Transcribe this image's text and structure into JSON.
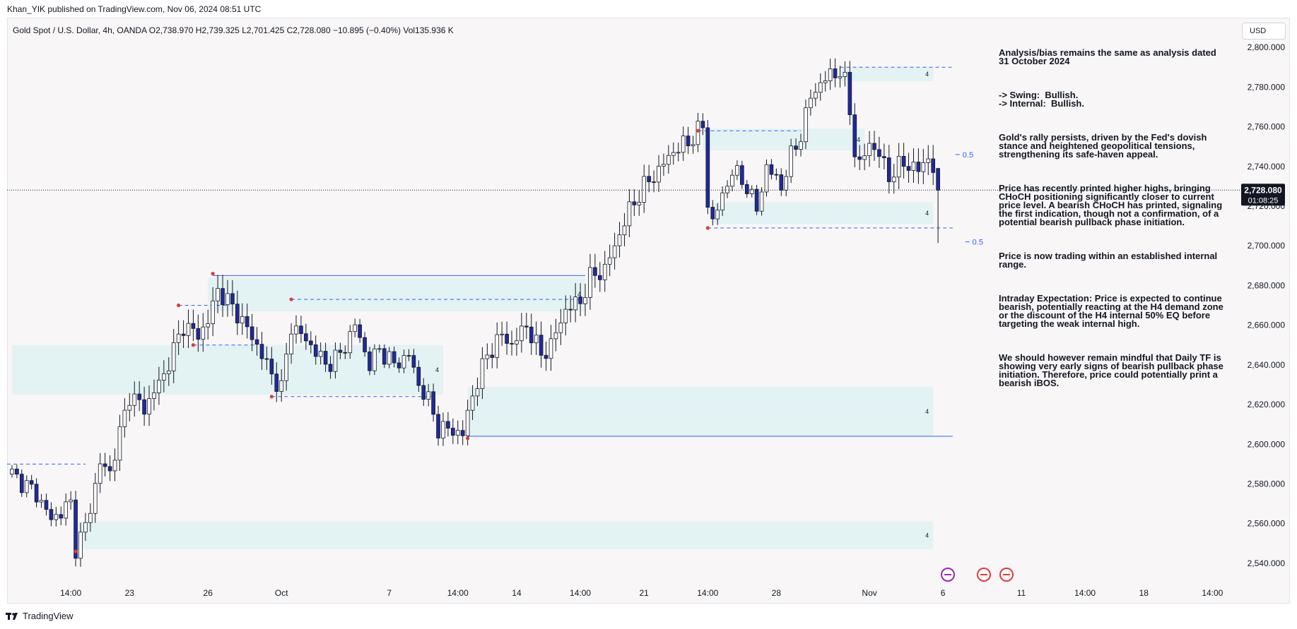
{
  "header": {
    "publisher": "Khan_YIK published on TradingView.com, Nov 06, 2024 08:51 UTC"
  },
  "symbol": {
    "line": "Gold Spot / U.S. Dollar, 4h, OANDA  O2,738.970  H2,739.325  L2,701.425  C2,728.080  −10.895 (−0.40%)  Vol135.936 K"
  },
  "currency": "USD",
  "analysis": [
    "Analysis/bias remains the same as analysis dated 31 October 2024",
    "-> Swing:  Bullish.\n-> Internal:  Bullish.",
    "Gold's rally persists, driven by the Fed's dovish stance and heightened geopolitical tensions, strengthening its safe-haven appeal.",
    "Price has recently printed higher highs, bringing CHoCH positioning significantly closer to current price level. A bearish CHoCH has printed, signaling the first indication, though not a confirmation, of a potential bearish pullback phase initiation.",
    "Price is now trading within an established internal range.",
    "Intraday Expectation: Price is expected to continue bearish, potentially reacting at the H4 demand zone or the discount of the H4 internal 50% EQ before targeting the weak internal high.",
    "We should however remain mindful that Daily TF is showing very early signs of bearish pullback phase initiation. Therefore, price could potentially print a bearish iBOS."
  ],
  "footer": {
    "brand": "TradingView"
  },
  "colors": {
    "up": "#ffffff",
    "down": "#1e2a9e",
    "wick": "#131722",
    "zone": "#e3f2f2",
    "level": "#2962ff",
    "swing_point": "#e53935"
  },
  "chart_data": {
    "type": "candlestick",
    "timeframe": "4h",
    "ylim": [
      2530,
      2815
    ],
    "yticks": [
      "2,540.000",
      "2,560.000",
      "2,580.000",
      "2,600.000",
      "2,620.000",
      "2,640.000",
      "2,660.000",
      "2,680.000",
      "2,700.000",
      "2,720.000",
      "2,740.000",
      "2,760.000",
      "2,780.000",
      "2,800.000"
    ],
    "ytick_values": [
      2540,
      2560,
      2580,
      2600,
      2620,
      2640,
      2660,
      2680,
      2700,
      2720,
      2740,
      2760,
      2780,
      2800
    ],
    "xticks": [
      {
        "label": "14:00",
        "bar": 12
      },
      {
        "label": "23",
        "bar": 24
      },
      {
        "label": "26",
        "bar": 40
      },
      {
        "label": "Oct",
        "bar": 55
      },
      {
        "label": "7",
        "bar": 77
      },
      {
        "label": "14:00",
        "bar": 91
      },
      {
        "label": "14",
        "bar": 103
      },
      {
        "label": "14:00",
        "bar": 116
      },
      {
        "label": "21",
        "bar": 129
      },
      {
        "label": "14:00",
        "bar": 142
      },
      {
        "label": "28",
        "bar": 156
      },
      {
        "label": "Nov",
        "bar": 175
      },
      {
        "label": "6",
        "bar": 190
      },
      {
        "label": "11",
        "bar": 206
      },
      {
        "label": "14:00",
        "bar": 219
      },
      {
        "label": "18",
        "bar": 231
      },
      {
        "label": "14:00",
        "bar": 245
      }
    ],
    "x_bar_range": [
      -1,
      250
    ],
    "last_price": {
      "value": 2728.08,
      "label": "2,728.080",
      "countdown": "01:08:25"
    },
    "anchors": [
      [
        0,
        2585
      ],
      [
        5,
        2575
      ],
      [
        8,
        2562
      ],
      [
        12,
        2570
      ],
      [
        13,
        2548
      ],
      [
        15,
        2558
      ],
      [
        18,
        2590
      ],
      [
        20,
        2586
      ],
      [
        24,
        2625
      ],
      [
        27,
        2618
      ],
      [
        31,
        2635
      ],
      [
        35,
        2660
      ],
      [
        38,
        2655
      ],
      [
        40,
        2662
      ],
      [
        42,
        2678
      ],
      [
        46,
        2666
      ],
      [
        50,
        2650
      ],
      [
        53,
        2635
      ],
      [
        55,
        2628
      ],
      [
        57,
        2660
      ],
      [
        61,
        2650
      ],
      [
        64,
        2640
      ],
      [
        67,
        2645
      ],
      [
        70,
        2660
      ],
      [
        73,
        2640
      ],
      [
        75,
        2648
      ],
      [
        78,
        2640
      ],
      [
        81,
        2645
      ],
      [
        83,
        2630
      ],
      [
        85,
        2622
      ],
      [
        87,
        2608
      ],
      [
        90,
        2607
      ],
      [
        92,
        2605
      ],
      [
        94,
        2625
      ],
      [
        97,
        2645
      ],
      [
        100,
        2655
      ],
      [
        102,
        2650
      ],
      [
        105,
        2660
      ],
      [
        108,
        2645
      ],
      [
        110,
        2650
      ],
      [
        113,
        2668
      ],
      [
        116,
        2672
      ],
      [
        118,
        2684
      ],
      [
        121,
        2688
      ],
      [
        123,
        2700
      ],
      [
        126,
        2718
      ],
      [
        129,
        2730
      ],
      [
        132,
        2738
      ],
      [
        135,
        2748
      ],
      [
        138,
        2752
      ],
      [
        140,
        2758
      ],
      [
        141,
        2760
      ],
      [
        142,
        2722
      ],
      [
        143,
        2712
      ],
      [
        145,
        2725
      ],
      [
        147,
        2738
      ],
      [
        150,
        2730
      ],
      [
        152,
        2718
      ],
      [
        154,
        2740
      ],
      [
        157,
        2730
      ],
      [
        159,
        2745
      ],
      [
        161,
        2756
      ],
      [
        163,
        2775
      ],
      [
        165,
        2782
      ],
      [
        167,
        2786
      ],
      [
        169,
        2788
      ],
      [
        170,
        2782
      ],
      [
        171,
        2768
      ],
      [
        172,
        2748
      ],
      [
        173,
        2740
      ],
      [
        175,
        2752
      ],
      [
        177,
        2746
      ],
      [
        179,
        2735
      ],
      [
        182,
        2742
      ],
      [
        185,
        2738
      ],
      [
        187,
        2745
      ],
      [
        188,
        2738
      ],
      [
        189,
        2728
      ]
    ],
    "zones": [
      {
        "bar_start": 40,
        "bar_end": 117,
        "top": 2684,
        "bottom": 2667,
        "label": "4"
      },
      {
        "bar_start": 0,
        "bar_end": 88,
        "top": 2650,
        "bottom": 2625,
        "label": "4"
      },
      {
        "bar_start": 93,
        "bar_end": 188,
        "top": 2629,
        "bottom": 2604,
        "label": "4"
      },
      {
        "bar_start": 13,
        "bar_end": 188,
        "top": 2561,
        "bottom": 2547,
        "label": "4"
      },
      {
        "bar_start": 141,
        "bar_end": 174,
        "top": 2759,
        "bottom": 2748,
        "label": "4"
      },
      {
        "bar_start": 143,
        "bar_end": 188,
        "top": 2722,
        "bottom": 2711,
        "label": "4"
      },
      {
        "bar_start": 169,
        "bar_end": 188,
        "top": 2790,
        "bottom": 2783,
        "label": "4"
      }
    ],
    "levels": [
      {
        "bar_start": 41,
        "bar_end": 117,
        "price": 2685,
        "style": "solid"
      },
      {
        "bar_start": 93,
        "bar_end": 192,
        "price": 2604,
        "style": "solid"
      },
      {
        "bar_start": -1,
        "bar_end": 15,
        "price": 2590,
        "style": "dashed"
      },
      {
        "bar_start": 34,
        "bar_end": 44,
        "price": 2670,
        "style": "dashed"
      },
      {
        "bar_start": 37,
        "bar_end": 50,
        "price": 2650,
        "style": "dashed"
      },
      {
        "bar_start": 57,
        "bar_end": 117,
        "price": 2673,
        "style": "dashed"
      },
      {
        "bar_start": 53,
        "bar_end": 86,
        "price": 2624,
        "style": "dashed"
      },
      {
        "bar_start": 140,
        "bar_end": 161,
        "price": 2758,
        "style": "dashed"
      },
      {
        "bar_start": 142,
        "bar_end": 192,
        "price": 2709,
        "style": "dashed"
      },
      {
        "bar_start": 169,
        "bar_end": 192,
        "price": 2790,
        "style": "dashed"
      }
    ],
    "swing_points": [
      [
        13,
        2546
      ],
      [
        34,
        2670
      ],
      [
        41,
        2686
      ],
      [
        37,
        2650
      ],
      [
        57,
        2673
      ],
      [
        53,
        2624
      ],
      [
        93,
        2603
      ],
      [
        140,
        2758
      ],
      [
        142,
        2709
      ]
    ],
    "eq_labels": [
      {
        "bar": 194,
        "price": 2746,
        "label": "0.5"
      },
      {
        "bar": 196,
        "price": 2702,
        "label": "0.5"
      }
    ]
  }
}
